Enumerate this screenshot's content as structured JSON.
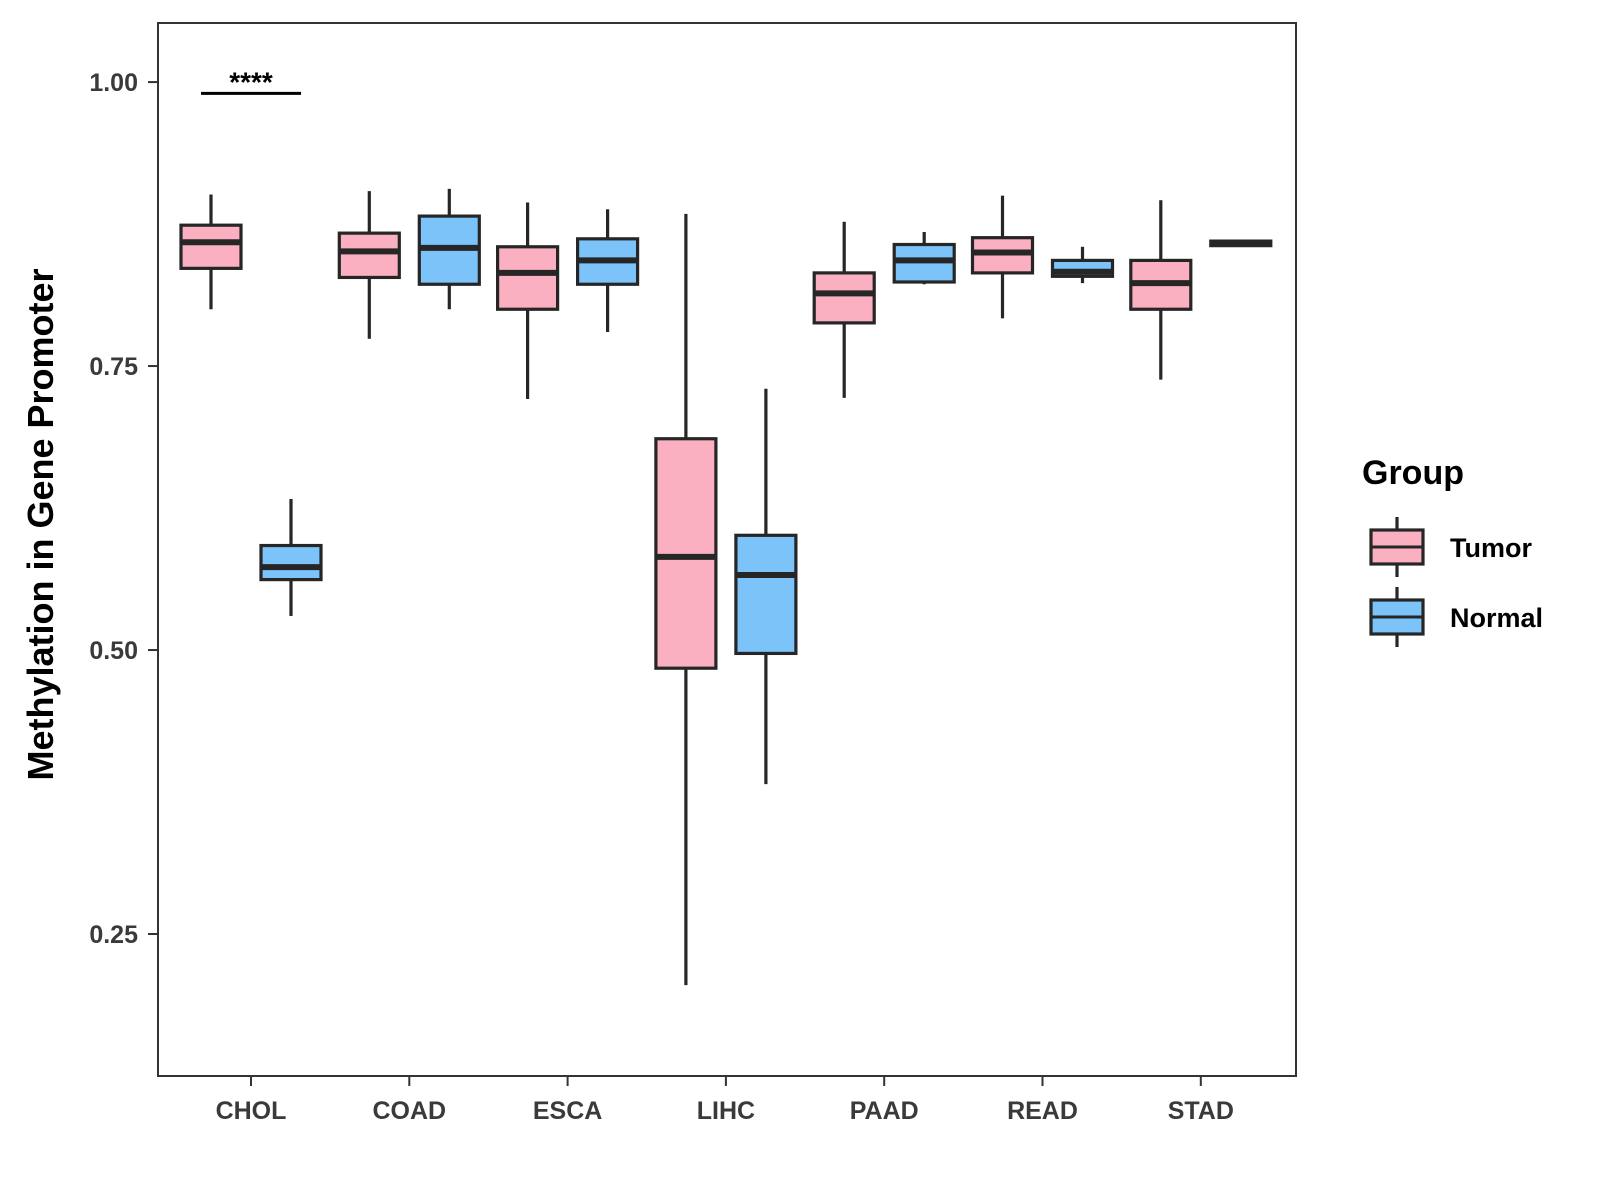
{
  "chart_data": {
    "type": "boxplot",
    "title": "",
    "xlabel": "",
    "ylabel": "Methylation in Gene Promoter",
    "ylim": [
      0.125,
      1.052
    ],
    "yticks": [
      0.25,
      0.5,
      0.75,
      1.0
    ],
    "ytick_labels": [
      "0.25",
      "0.50",
      "0.75",
      "1.00"
    ],
    "categories": [
      "CHOL",
      "COAD",
      "ESCA",
      "LIHC",
      "PAAD",
      "READ",
      "STAD"
    ],
    "grid": false,
    "legend": {
      "title": "Group",
      "position": "right",
      "entries": [
        {
          "name": "Tumor",
          "color": "#fbb0c2"
        },
        {
          "name": "Normal",
          "color": "#7bc3f9"
        }
      ]
    },
    "series": [
      {
        "name": "Tumor",
        "color": "#fbb0c2",
        "boxes": [
          {
            "category": "CHOL",
            "whisker_low": 0.8,
            "q1": 0.836,
            "median": 0.859,
            "q3": 0.874,
            "whisker_high": 0.901
          },
          {
            "category": "COAD",
            "whisker_low": 0.774,
            "q1": 0.828,
            "median": 0.851,
            "q3": 0.867,
            "whisker_high": 0.904
          },
          {
            "category": "ESCA",
            "whisker_low": 0.721,
            "q1": 0.8,
            "median": 0.832,
            "q3": 0.855,
            "whisker_high": 0.894
          },
          {
            "category": "LIHC",
            "whisker_low": 0.205,
            "q1": 0.484,
            "median": 0.582,
            "q3": 0.686,
            "whisker_high": 0.884
          },
          {
            "category": "PAAD",
            "whisker_low": 0.722,
            "q1": 0.788,
            "median": 0.814,
            "q3": 0.832,
            "whisker_high": 0.877
          },
          {
            "category": "READ",
            "whisker_low": 0.792,
            "q1": 0.832,
            "median": 0.85,
            "q3": 0.863,
            "whisker_high": 0.9
          },
          {
            "category": "STAD",
            "whisker_low": 0.738,
            "q1": 0.8,
            "median": 0.823,
            "q3": 0.843,
            "whisker_high": 0.896
          }
        ]
      },
      {
        "name": "Normal",
        "color": "#7bc3f9",
        "boxes": [
          {
            "category": "CHOL",
            "whisker_low": 0.53,
            "q1": 0.562,
            "median": 0.573,
            "q3": 0.592,
            "whisker_high": 0.633
          },
          {
            "category": "COAD",
            "whisker_low": 0.8,
            "q1": 0.822,
            "median": 0.854,
            "q3": 0.882,
            "whisker_high": 0.906
          },
          {
            "category": "ESCA",
            "whisker_low": 0.78,
            "q1": 0.822,
            "median": 0.843,
            "q3": 0.862,
            "whisker_high": 0.888
          },
          {
            "category": "LIHC",
            "whisker_low": 0.382,
            "q1": 0.497,
            "median": 0.566,
            "q3": 0.601,
            "whisker_high": 0.73
          },
          {
            "category": "PAAD",
            "whisker_low": 0.822,
            "q1": 0.824,
            "median": 0.843,
            "q3": 0.857,
            "whisker_high": 0.868
          },
          {
            "category": "READ",
            "whisker_low": 0.823,
            "q1": 0.829,
            "median": 0.833,
            "q3": 0.843,
            "whisker_high": 0.855
          },
          {
            "category": "STAD",
            "whisker_low": 0.856,
            "q1": 0.856,
            "median": 0.858,
            "q3": 0.86,
            "whisker_high": 0.86
          }
        ]
      }
    ],
    "annotations": [
      {
        "text": "****",
        "category": "CHOL",
        "y": 0.99
      }
    ]
  }
}
